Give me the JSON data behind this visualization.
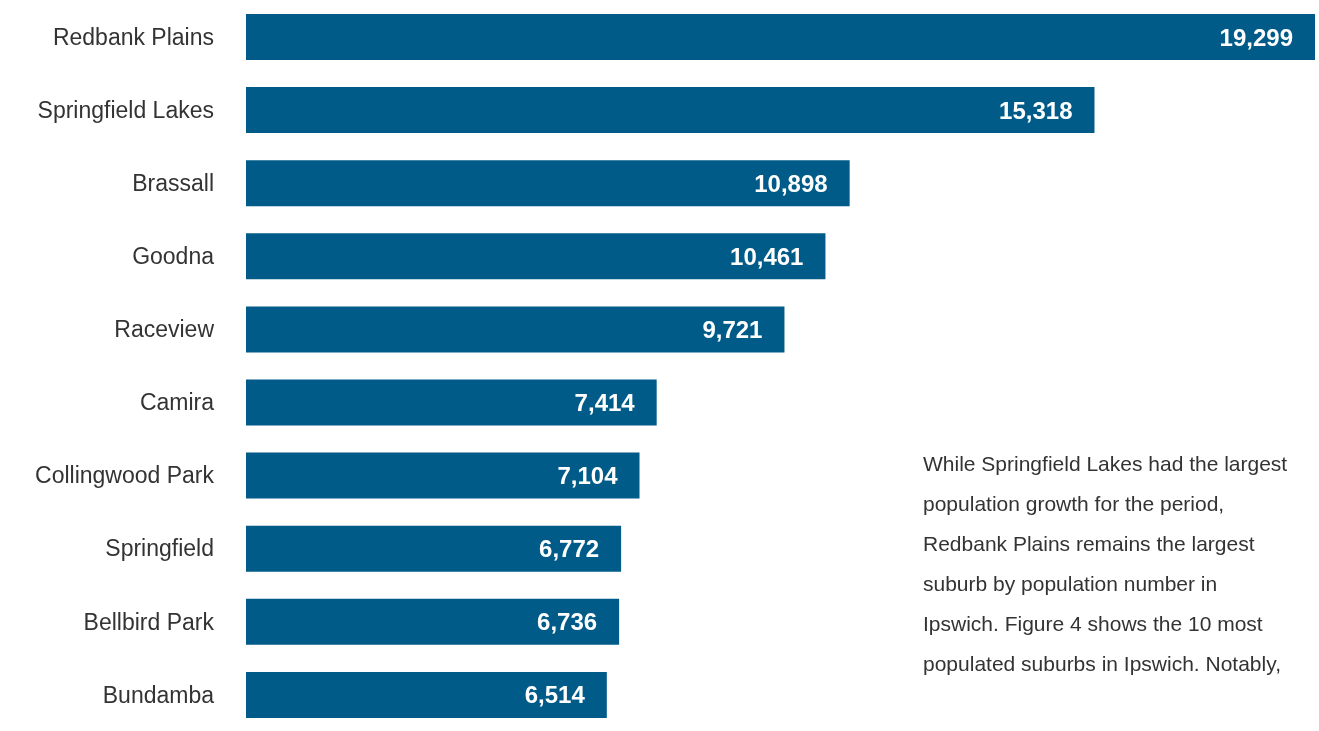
{
  "chart_data": {
    "type": "bar",
    "orientation": "horizontal",
    "categories": [
      "Redbank Plains",
      "Springfield Lakes",
      "Brassall",
      "Goodna",
      "Raceview",
      "Camira",
      "Collingwood Park",
      "Springfield",
      "Bellbird Park",
      "Bundamba"
    ],
    "values": [
      19299,
      15318,
      10898,
      10461,
      9721,
      7414,
      7104,
      6772,
      6736,
      6514
    ],
    "value_labels": [
      "19,299",
      "15,318",
      "10,898",
      "10,461",
      "9,721",
      "7,414",
      "7,104",
      "6,772",
      "6,736",
      "6,514"
    ],
    "color": "#005b88",
    "annotations": [
      "While Springfield Lakes had the largest population growth for the period, Redbank Plains remains the largest suburb by population number in Ipswich. Figure 4 shows the 10 most populated suburbs in Ipswich. Notably,"
    ]
  }
}
